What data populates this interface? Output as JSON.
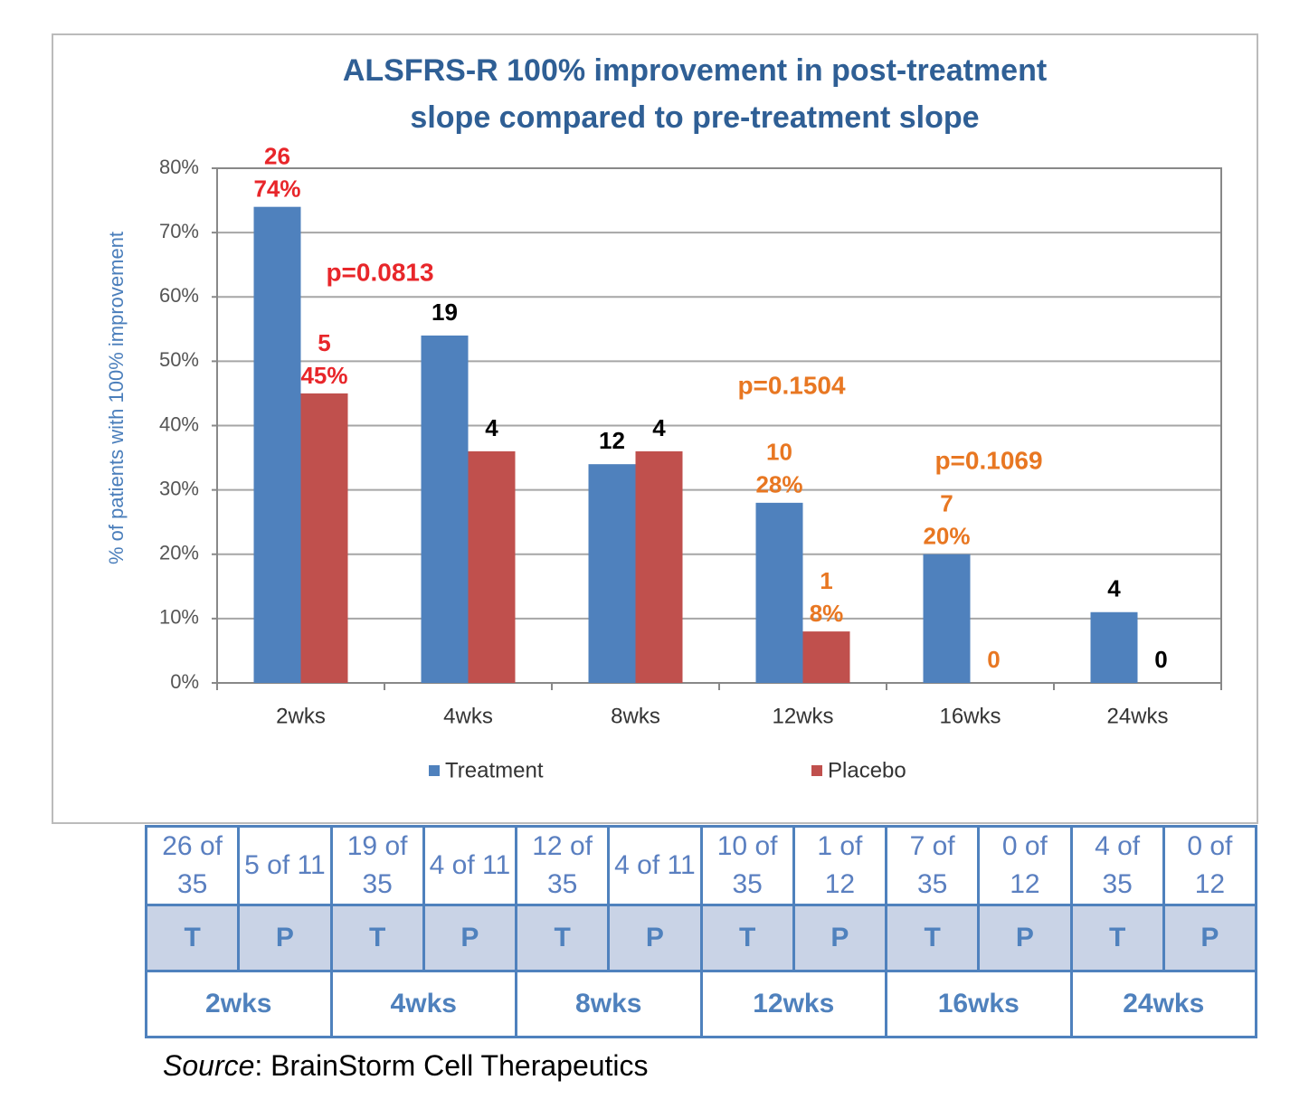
{
  "chart_data": {
    "type": "bar",
    "title": [
      "ALSFRS-R 100%  improvement in post-treatment",
      "slope compared to pre-treatment slope"
    ],
    "ylabel": "% of patients with 100% improvement",
    "categories": [
      "2wks",
      "4wks",
      "8wks",
      "12wks",
      "16wks",
      "24wks"
    ],
    "series": [
      {
        "name": "Treatment",
        "color": "#4f81bd",
        "values": [
          74,
          54,
          34,
          28,
          20,
          11
        ],
        "counts": [
          26,
          19,
          12,
          10,
          7,
          4
        ],
        "value_labels": [
          "74%",
          null,
          null,
          "28%",
          "20%",
          null
        ],
        "label_colors": [
          "#e8262a",
          "#000000",
          "#000000",
          "#e87722",
          "#e87722",
          "#000000"
        ]
      },
      {
        "name": "Placebo",
        "color": "#c0504d",
        "values": [
          45,
          36,
          36,
          8,
          0,
          0
        ],
        "counts": [
          5,
          4,
          4,
          1,
          0,
          0
        ],
        "value_labels": [
          "45%",
          null,
          null,
          "8%",
          null,
          null
        ],
        "label_colors": [
          "#e8262a",
          "#000000",
          "#000000",
          "#e87722",
          "#e87722",
          "#000000"
        ]
      }
    ],
    "annotations": [
      {
        "text": "p=0.0813",
        "color": "#e8262a"
      },
      {
        "text": "p=0.1504",
        "color": "#e87722"
      },
      {
        "text": "p=0.1069",
        "color": "#e87722"
      }
    ],
    "ylim": [
      0,
      80
    ],
    "yticks": [
      {
        "value": 0,
        "label": "0%"
      },
      {
        "value": 10,
        "label": "10%"
      },
      {
        "value": 20,
        "label": "20%"
      },
      {
        "value": 30,
        "label": "30%"
      },
      {
        "value": 40,
        "label": "40%"
      },
      {
        "value": 50,
        "label": "50%"
      },
      {
        "value": 60,
        "label": "60%"
      },
      {
        "value": 70,
        "label": "70%"
      },
      {
        "value": 80,
        "label": "80%"
      }
    ],
    "grid": true,
    "legend": "bottom"
  },
  "table": {
    "rows": [
      [
        "26 of 35",
        "5 of 11",
        "19 of 35",
        "4 of 11",
        "12 of 35",
        "4 of 11",
        "10 of 35",
        "1 of 12",
        "7 of 35",
        "0 of 12",
        "4 of 35",
        "0 of 12"
      ],
      [
        "T",
        "P",
        "T",
        "P",
        "T",
        "P",
        "T",
        "P",
        "T",
        "P",
        "T",
        "P"
      ],
      [
        "2wks",
        "4wks",
        "8wks",
        "12wks",
        "16wks",
        "24wks"
      ]
    ]
  },
  "source": {
    "label": "Source",
    "text": ": BrainStorm Cell Therapeutics"
  }
}
